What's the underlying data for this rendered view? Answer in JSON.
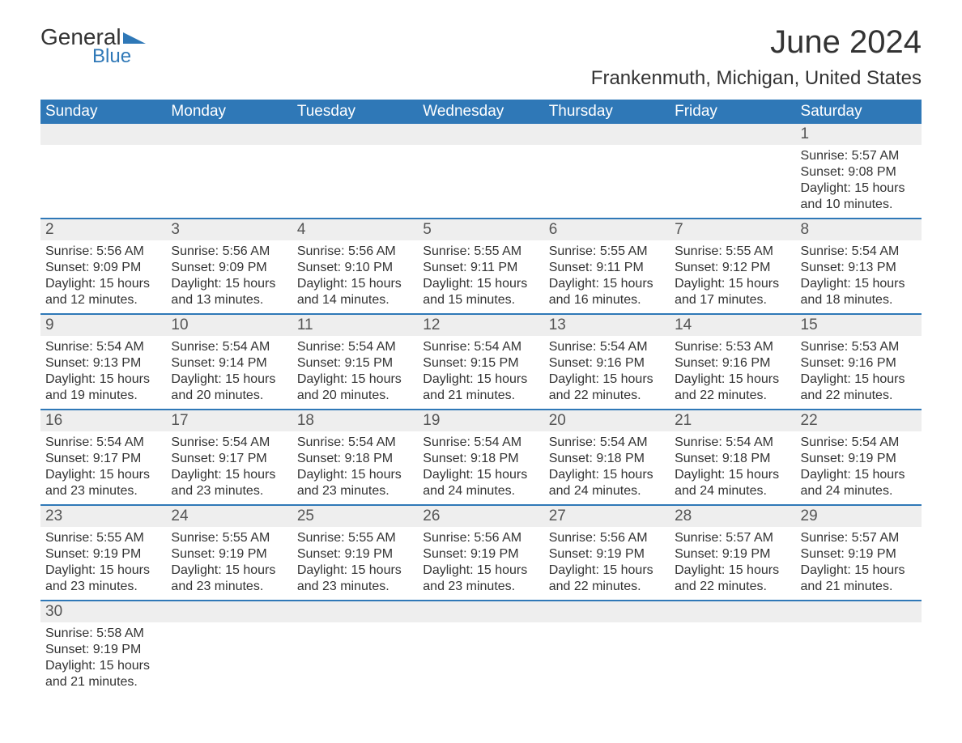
{
  "logo": {
    "top": "General",
    "bottom": "Blue"
  },
  "title": "June 2024",
  "location": "Frankenmuth, Michigan, United States",
  "weekday_labels": [
    "Sunday",
    "Monday",
    "Tuesday",
    "Wednesday",
    "Thursday",
    "Friday",
    "Saturday"
  ],
  "month_start_weekday": 6,
  "days_in_month": 30,
  "field_labels": {
    "sunrise": "Sunrise: ",
    "sunset": "Sunset: ",
    "daylight": "Daylight: "
  },
  "colors": {
    "header_bg": "#2f78b7",
    "header_text": "#ffffff",
    "daynum_bg": "#eeeeee",
    "row_border": "#2f78b7",
    "text": "#333333",
    "logo_blue": "#2f78b7"
  },
  "days": {
    "1": {
      "sunrise": "5:57 AM",
      "sunset": "9:08 PM",
      "daylight": "15 hours and 10 minutes."
    },
    "2": {
      "sunrise": "5:56 AM",
      "sunset": "9:09 PM",
      "daylight": "15 hours and 12 minutes."
    },
    "3": {
      "sunrise": "5:56 AM",
      "sunset": "9:09 PM",
      "daylight": "15 hours and 13 minutes."
    },
    "4": {
      "sunrise": "5:56 AM",
      "sunset": "9:10 PM",
      "daylight": "15 hours and 14 minutes."
    },
    "5": {
      "sunrise": "5:55 AM",
      "sunset": "9:11 PM",
      "daylight": "15 hours and 15 minutes."
    },
    "6": {
      "sunrise": "5:55 AM",
      "sunset": "9:11 PM",
      "daylight": "15 hours and 16 minutes."
    },
    "7": {
      "sunrise": "5:55 AM",
      "sunset": "9:12 PM",
      "daylight": "15 hours and 17 minutes."
    },
    "8": {
      "sunrise": "5:54 AM",
      "sunset": "9:13 PM",
      "daylight": "15 hours and 18 minutes."
    },
    "9": {
      "sunrise": "5:54 AM",
      "sunset": "9:13 PM",
      "daylight": "15 hours and 19 minutes."
    },
    "10": {
      "sunrise": "5:54 AM",
      "sunset": "9:14 PM",
      "daylight": "15 hours and 20 minutes."
    },
    "11": {
      "sunrise": "5:54 AM",
      "sunset": "9:15 PM",
      "daylight": "15 hours and 20 minutes."
    },
    "12": {
      "sunrise": "5:54 AM",
      "sunset": "9:15 PM",
      "daylight": "15 hours and 21 minutes."
    },
    "13": {
      "sunrise": "5:54 AM",
      "sunset": "9:16 PM",
      "daylight": "15 hours and 22 minutes."
    },
    "14": {
      "sunrise": "5:53 AM",
      "sunset": "9:16 PM",
      "daylight": "15 hours and 22 minutes."
    },
    "15": {
      "sunrise": "5:53 AM",
      "sunset": "9:16 PM",
      "daylight": "15 hours and 22 minutes."
    },
    "16": {
      "sunrise": "5:54 AM",
      "sunset": "9:17 PM",
      "daylight": "15 hours and 23 minutes."
    },
    "17": {
      "sunrise": "5:54 AM",
      "sunset": "9:17 PM",
      "daylight": "15 hours and 23 minutes."
    },
    "18": {
      "sunrise": "5:54 AM",
      "sunset": "9:18 PM",
      "daylight": "15 hours and 23 minutes."
    },
    "19": {
      "sunrise": "5:54 AM",
      "sunset": "9:18 PM",
      "daylight": "15 hours and 24 minutes."
    },
    "20": {
      "sunrise": "5:54 AM",
      "sunset": "9:18 PM",
      "daylight": "15 hours and 24 minutes."
    },
    "21": {
      "sunrise": "5:54 AM",
      "sunset": "9:18 PM",
      "daylight": "15 hours and 24 minutes."
    },
    "22": {
      "sunrise": "5:54 AM",
      "sunset": "9:19 PM",
      "daylight": "15 hours and 24 minutes."
    },
    "23": {
      "sunrise": "5:55 AM",
      "sunset": "9:19 PM",
      "daylight": "15 hours and 23 minutes."
    },
    "24": {
      "sunrise": "5:55 AM",
      "sunset": "9:19 PM",
      "daylight": "15 hours and 23 minutes."
    },
    "25": {
      "sunrise": "5:55 AM",
      "sunset": "9:19 PM",
      "daylight": "15 hours and 23 minutes."
    },
    "26": {
      "sunrise": "5:56 AM",
      "sunset": "9:19 PM",
      "daylight": "15 hours and 23 minutes."
    },
    "27": {
      "sunrise": "5:56 AM",
      "sunset": "9:19 PM",
      "daylight": "15 hours and 22 minutes."
    },
    "28": {
      "sunrise": "5:57 AM",
      "sunset": "9:19 PM",
      "daylight": "15 hours and 22 minutes."
    },
    "29": {
      "sunrise": "5:57 AM",
      "sunset": "9:19 PM",
      "daylight": "15 hours and 21 minutes."
    },
    "30": {
      "sunrise": "5:58 AM",
      "sunset": "9:19 PM",
      "daylight": "15 hours and 21 minutes."
    }
  }
}
